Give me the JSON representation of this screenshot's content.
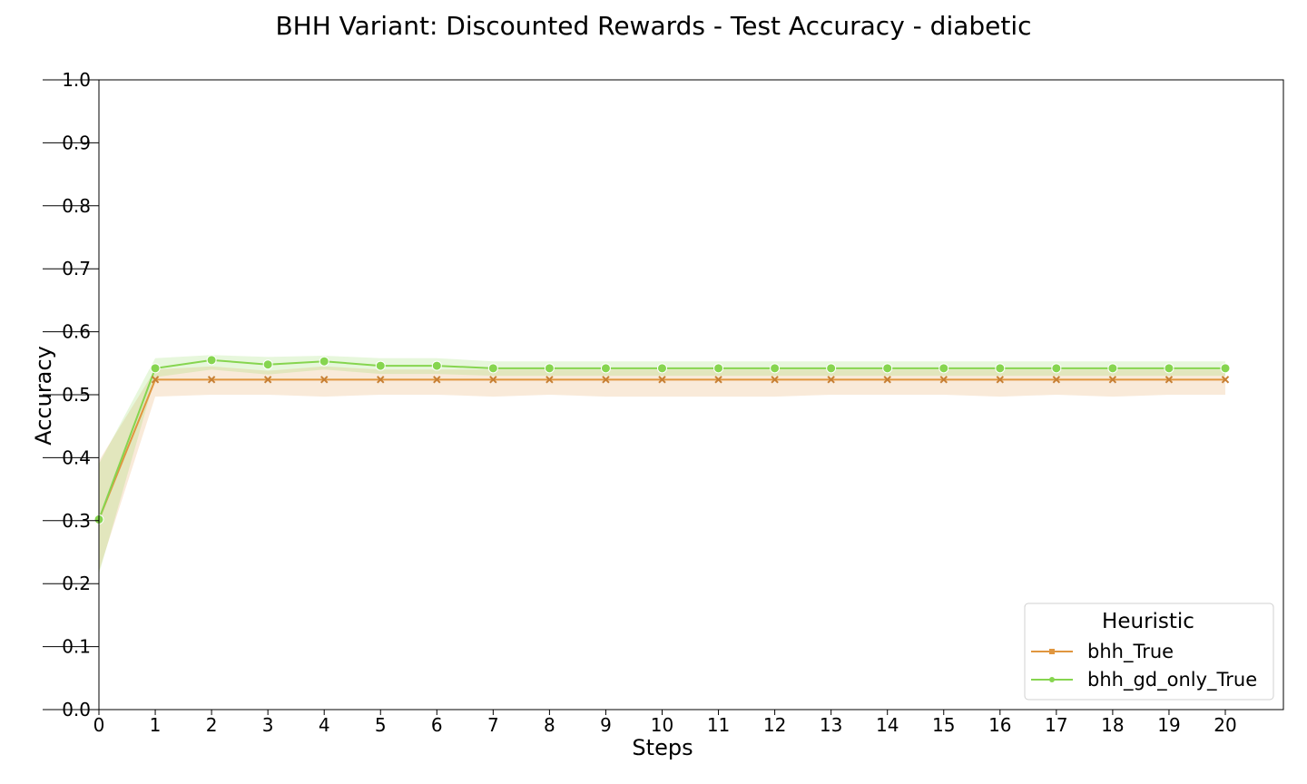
{
  "chart_data": {
    "type": "line",
    "title": "BHH Variant: Discounted Rewards - Test Accuracy - diabetic",
    "xlabel": "Steps",
    "ylabel": "Accuracy",
    "xlim": [
      0,
      21
    ],
    "ylim": [
      0.0,
      1.0
    ],
    "x_ticks": [
      0,
      1,
      2,
      3,
      4,
      5,
      6,
      7,
      8,
      9,
      10,
      11,
      12,
      13,
      14,
      15,
      16,
      17,
      18,
      19,
      20
    ],
    "y_ticks": [
      "0.0",
      "0.1",
      "0.2",
      "0.3",
      "0.4",
      "0.5",
      "0.6",
      "0.7",
      "0.8",
      "0.9",
      "1.0"
    ],
    "grid": false,
    "legend": {
      "title": "Heuristic",
      "placement": "lower-right"
    },
    "x": [
      0,
      1,
      2,
      3,
      4,
      5,
      6,
      7,
      8,
      9,
      10,
      11,
      12,
      13,
      14,
      15,
      16,
      17,
      18,
      19,
      20
    ],
    "series": [
      {
        "name": "bhh_True",
        "color": "#e0963f",
        "marker": "x",
        "values": [
          0.302,
          0.524,
          0.524,
          0.524,
          0.524,
          0.524,
          0.524,
          0.524,
          0.524,
          0.524,
          0.524,
          0.524,
          0.524,
          0.524,
          0.524,
          0.524,
          0.524,
          0.524,
          0.524,
          0.524,
          0.524
        ],
        "ci_low": [
          0.22,
          0.497,
          0.5,
          0.5,
          0.497,
          0.5,
          0.5,
          0.497,
          0.5,
          0.497,
          0.497,
          0.497,
          0.497,
          0.5,
          0.5,
          0.5,
          0.497,
          0.5,
          0.497,
          0.5,
          0.5
        ],
        "ci_high": [
          0.395,
          0.54,
          0.545,
          0.538,
          0.545,
          0.54,
          0.54,
          0.54,
          0.54,
          0.54,
          0.54,
          0.54,
          0.54,
          0.54,
          0.54,
          0.54,
          0.54,
          0.54,
          0.54,
          0.54,
          0.54
        ]
      },
      {
        "name": "bhh_gd_only_True",
        "color": "#86d54f",
        "marker": "o",
        "values": [
          0.302,
          0.542,
          0.555,
          0.548,
          0.553,
          0.546,
          0.546,
          0.542,
          0.542,
          0.542,
          0.542,
          0.542,
          0.542,
          0.542,
          0.542,
          0.542,
          0.542,
          0.542,
          0.542,
          0.542,
          0.542
        ],
        "ci_low": [
          0.215,
          0.528,
          0.54,
          0.532,
          0.54,
          0.533,
          0.533,
          0.53,
          0.53,
          0.53,
          0.53,
          0.53,
          0.53,
          0.53,
          0.53,
          0.53,
          0.53,
          0.53,
          0.53,
          0.53,
          0.53
        ],
        "ci_high": [
          0.39,
          0.558,
          0.563,
          0.56,
          0.562,
          0.558,
          0.558,
          0.553,
          0.553,
          0.553,
          0.553,
          0.553,
          0.553,
          0.553,
          0.553,
          0.553,
          0.553,
          0.553,
          0.553,
          0.553,
          0.553
        ]
      }
    ]
  }
}
